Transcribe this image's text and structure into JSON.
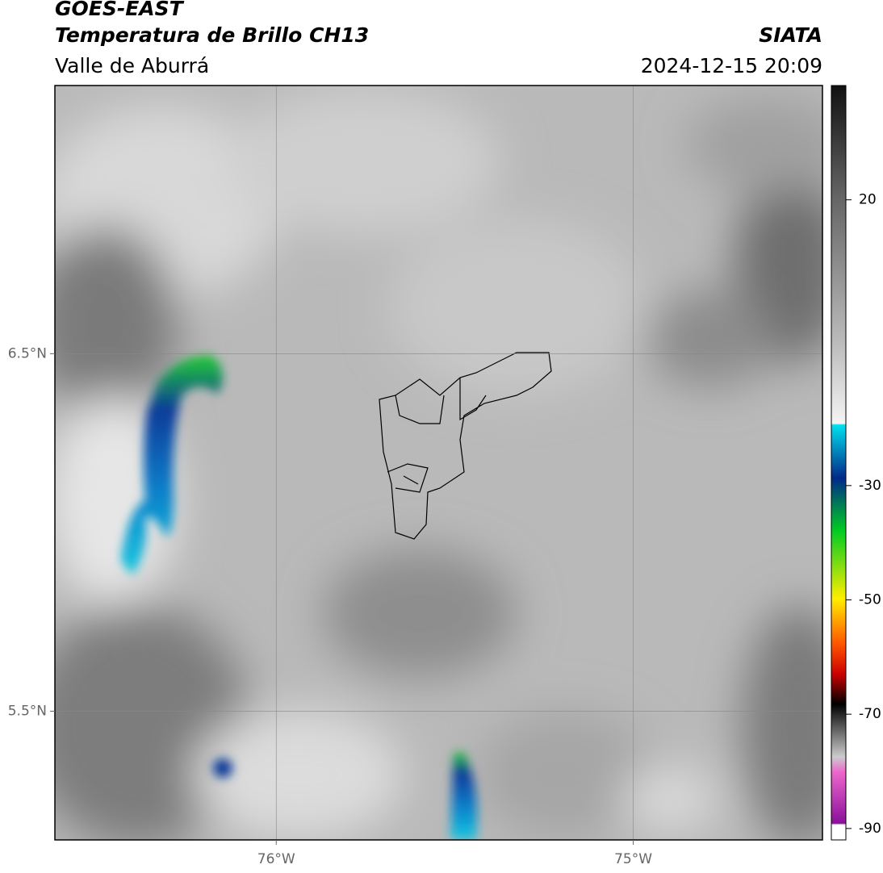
{
  "header": {
    "title": "GOES-EAST",
    "subtitle": "Temperatura de Brillo CH13",
    "region": "Valle de Aburrá",
    "agency": "SIATA",
    "timestamp": "2024-12-15 20:09"
  },
  "map": {
    "xlim": [
      -76.62,
      -74.47
    ],
    "ylim": [
      5.14,
      7.25
    ],
    "xticks": [
      {
        "value": -76,
        "label": "76°W"
      },
      {
        "value": -75,
        "label": "75°W"
      }
    ],
    "yticks": [
      {
        "value": 6.5,
        "label": "6.5°N"
      },
      {
        "value": 5.5,
        "label": "5.5°N"
      }
    ],
    "grid": true
  },
  "colorbar": {
    "lim": [
      -92,
      40
    ],
    "ticks": [
      20,
      -30,
      -50,
      -70,
      -90
    ]
  }
}
